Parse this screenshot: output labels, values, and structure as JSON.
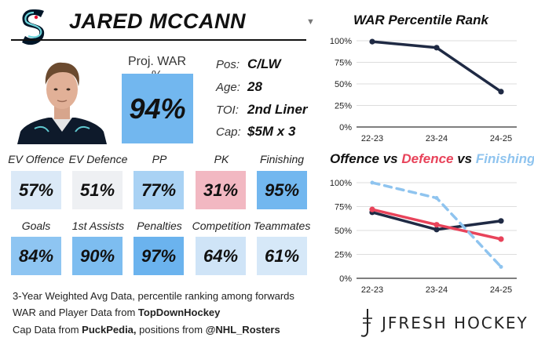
{
  "player": {
    "name": "JARED MCCANN",
    "proj_war_label": "Proj. WAR %",
    "proj_war_value": "94%",
    "info": [
      {
        "label": "Pos:",
        "value": "C/LW"
      },
      {
        "label": "Age:",
        "value": "28"
      },
      {
        "label": "TOI:",
        "value": "2nd Liner"
      },
      {
        "label": "Cap:",
        "value": "$5M x 3"
      }
    ]
  },
  "stats": [
    {
      "label": "EV Offence",
      "value": "57%",
      "color": "#dbe9f7"
    },
    {
      "label": "EV Defence",
      "value": "51%",
      "color": "#eef0f3"
    },
    {
      "label": "PP",
      "value": "77%",
      "color": "#a9d2f4"
    },
    {
      "label": "PK",
      "value": "31%",
      "color": "#f2b8c2"
    },
    {
      "label": "Finishing",
      "value": "95%",
      "color": "#72b7ef"
    },
    {
      "label": "Goals",
      "value": "84%",
      "color": "#8ec5f2"
    },
    {
      "label": "1st Assists",
      "value": "90%",
      "color": "#7dbdf0"
    },
    {
      "label": "Penalties",
      "value": "97%",
      "color": "#6bb3ee"
    },
    {
      "label": "Competition",
      "value": "64%",
      "color": "#cfe4f7"
    },
    {
      "label": "Teammates",
      "value": "61%",
      "color": "#d6e8f8"
    }
  ],
  "footer": {
    "line1": "3-Year Weighted Avg Data, percentile ranking among forwards",
    "line2_prefix": "WAR and Player Data from ",
    "line2_bold": "TopDownHockey",
    "line3_prefix": "Cap Data from ",
    "line3_bold1": "PuckPedia,",
    "line3_mid": " positions from ",
    "line3_bold2": "@NHL_Rosters"
  },
  "brand": "JFRESH HOCKEY",
  "colors": {
    "dark": "#1f2a44",
    "red": "#e8435a",
    "blue": "#8fc4ef"
  },
  "chart_data": [
    {
      "type": "line",
      "title": "WAR Percentile Rank",
      "categories": [
        "22-23",
        "23-24",
        "24-25"
      ],
      "y_ticks": [
        "0%",
        "25%",
        "50%",
        "75%",
        "100%"
      ],
      "ylim": [
        0,
        100
      ],
      "series": [
        {
          "values": [
            99,
            92,
            41
          ],
          "color": "#1f2a44",
          "style": "solid"
        }
      ]
    },
    {
      "type": "line",
      "title_parts": [
        {
          "text": "Offence",
          "color": "#1f2a44"
        },
        {
          "text": " vs ",
          "color": "#1f2a44"
        },
        {
          "text": "Defence",
          "color": "#e8435a"
        },
        {
          "text": " vs ",
          "color": "#1f2a44"
        },
        {
          "text": "Finishing",
          "color": "#8fc4ef"
        }
      ],
      "categories": [
        "22-23",
        "23-24",
        "24-25"
      ],
      "y_ticks": [
        "0%",
        "25%",
        "50%",
        "75%",
        "100%"
      ],
      "ylim": [
        0,
        100
      ],
      "series": [
        {
          "values": [
            69,
            51,
            60
          ],
          "color": "#1f2a44",
          "style": "solid"
        },
        {
          "values": [
            72,
            56,
            41
          ],
          "color": "#e8435a",
          "style": "solid"
        },
        {
          "values": [
            100,
            84,
            12
          ],
          "color": "#8fc4ef",
          "style": "dashed"
        }
      ]
    }
  ]
}
